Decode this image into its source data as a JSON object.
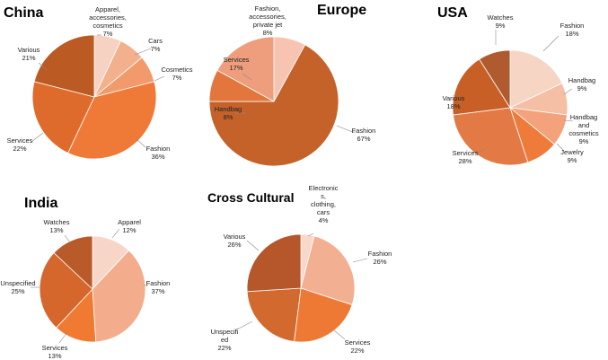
{
  "chart_data": [
    {
      "type": "pie",
      "title": "China",
      "slices": [
        {
          "label": "Apparel, accessories, cosmetics",
          "lines": [
            "Apparel,",
            "accessories,",
            "cosmetics"
          ],
          "value": 7,
          "pct": "7%",
          "color": "#F6D2C2"
        },
        {
          "label": "Cars",
          "lines": [
            "Cars"
          ],
          "value": 7,
          "pct": "7%",
          "color": "#F3B08D"
        },
        {
          "label": "Cosmetics",
          "lines": [
            "Cosmetics"
          ],
          "value": 7,
          "pct": "7%",
          "color": "#F39A6C"
        },
        {
          "label": "Fashion",
          "lines": [
            "Fashion"
          ],
          "value": 36,
          "pct": "36%",
          "color": "#EF7A38"
        },
        {
          "label": "Services",
          "lines": [
            "Services"
          ],
          "value": 22,
          "pct": "22%",
          "color": "#DE6B2C"
        },
        {
          "label": "Various",
          "lines": [
            "Various"
          ],
          "value": 21,
          "pct": "21%",
          "color": "#BB5A23"
        }
      ]
    },
    {
      "type": "pie",
      "title": "Europe",
      "slices": [
        {
          "label": "Fashion, accessories, private jet",
          "lines": [
            "Fashion,",
            "accessories,",
            "private jet"
          ],
          "value": 8,
          "pct": "8%",
          "color": "#F6C4B1"
        },
        {
          "label": "Fashion",
          "lines": [
            "Fashion"
          ],
          "value": 67,
          "pct": "67%",
          "color": "#C5622A"
        },
        {
          "label": "Handbag",
          "lines": [
            "Handbag"
          ],
          "value": 8,
          "pct": "8%",
          "color": "#E3763C"
        },
        {
          "label": "Services",
          "lines": [
            "Services"
          ],
          "value": 17,
          "pct": "17%",
          "color": "#EE9E7C"
        }
      ]
    },
    {
      "type": "pie",
      "title": "USA",
      "slices": [
        {
          "label": "Fashion",
          "lines": [
            "Fashion"
          ],
          "value": 18,
          "pct": "18%",
          "color": "#F7D5C5"
        },
        {
          "label": "Handbag",
          "lines": [
            "Handbag"
          ],
          "value": 9,
          "pct": "9%",
          "color": "#F4BFA5"
        },
        {
          "label": "Handbag and cosmetics",
          "lines": [
            "Handbag",
            "and",
            "cosmetics"
          ],
          "value": 9,
          "pct": "9%",
          "color": "#F3A27C"
        },
        {
          "label": "Jewelry",
          "lines": [
            "Jewelry"
          ],
          "value": 9,
          "pct": "9%",
          "color": "#EF7B3B"
        },
        {
          "label": "Services",
          "lines": [
            "Services"
          ],
          "value": 28,
          "pct": "28%",
          "color": "#E37A45"
        },
        {
          "label": "Various",
          "lines": [
            "Various"
          ],
          "value": 18,
          "pct": "18%",
          "color": "#C85F26"
        },
        {
          "label": "Watches",
          "lines": [
            "Watches"
          ],
          "value": 9,
          "pct": "9%",
          "color": "#B05A2F"
        }
      ]
    },
    {
      "type": "pie",
      "title": "India",
      "slices": [
        {
          "label": "Apparel",
          "lines": [
            "Apparel"
          ],
          "value": 12,
          "pct": "12%",
          "color": "#F7D6C8"
        },
        {
          "label": "Fashion",
          "lines": [
            "Fashion"
          ],
          "value": 37,
          "pct": "37%",
          "color": "#F3AD8D"
        },
        {
          "label": "Services",
          "lines": [
            "Services"
          ],
          "value": 13,
          "pct": "13%",
          "color": "#F17A33"
        },
        {
          "label": "Unspecified",
          "lines": [
            "Unspecified"
          ],
          "value": 25,
          "pct": "25%",
          "color": "#D5662C"
        },
        {
          "label": "Watches",
          "lines": [
            "Watches"
          ],
          "value": 13,
          "pct": "13%",
          "color": "#B85A2A"
        }
      ]
    },
    {
      "type": "pie",
      "title": "Cross Cultural",
      "slices": [
        {
          "label": "Electronics, clothing, cars",
          "lines": [
            "Electronic",
            "s,",
            "clothing,",
            "cars"
          ],
          "value": 4,
          "pct": "4%",
          "color": "#F7D8CB"
        },
        {
          "label": "Fashion",
          "lines": [
            "Fashion"
          ],
          "value": 26,
          "pct": "26%",
          "color": "#F3AF91"
        },
        {
          "label": "Services",
          "lines": [
            "Services"
          ],
          "value": 22,
          "pct": "22%",
          "color": "#EE7935"
        },
        {
          "label": "Unspecified",
          "lines": [
            "Unspeciﬁ",
            "ed"
          ],
          "value": 22,
          "pct": "22%",
          "color": "#D2692E"
        },
        {
          "label": "Various",
          "lines": [
            "Various"
          ],
          "value": 26,
          "pct": "26%",
          "color": "#B5572A"
        }
      ]
    }
  ]
}
